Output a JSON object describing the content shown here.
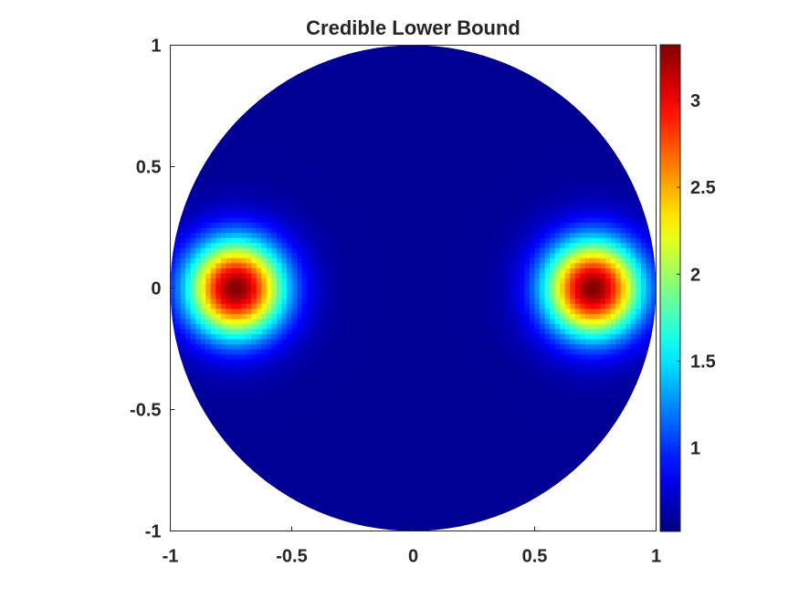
{
  "chart_data": {
    "type": "heatmap",
    "title": "Credible Lower Bound",
    "xlabel": "",
    "ylabel": "",
    "domain": "unit disk",
    "xlim": [
      -1,
      1
    ],
    "ylim": [
      -1,
      1
    ],
    "xticks": [
      -1,
      -0.5,
      0,
      0.5,
      1
    ],
    "xtick_labels": [
      "-1",
      "-0.5",
      "0",
      "0.5",
      "1"
    ],
    "yticks": [
      -1,
      -0.5,
      0,
      0.5,
      1
    ],
    "ytick_labels": [
      "-1",
      "-0.5",
      "0",
      "0.5",
      "1"
    ],
    "colormap": "jet",
    "color_range": [
      0.52,
      3.32
    ],
    "colorbar_ticks": [
      1,
      1.5,
      2,
      2.5,
      3
    ],
    "colorbar_tick_labels": [
      "1",
      "1.5",
      "2",
      "2.5",
      "3"
    ],
    "background_value": 0.58,
    "blobs": [
      {
        "center": [
          -0.73,
          0.0
        ],
        "peak": 3.32,
        "sigma": 0.14
      },
      {
        "center": [
          0.74,
          0.0
        ],
        "peak": 3.32,
        "sigma": 0.14
      }
    ],
    "grid": false
  }
}
